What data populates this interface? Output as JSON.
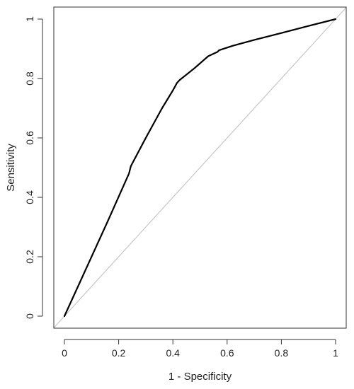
{
  "chart_data": {
    "type": "line",
    "title": "",
    "xlabel": "1 - Specificity",
    "ylabel": "Sensitivity",
    "xlim": [
      0,
      1
    ],
    "ylim": [
      0,
      1
    ],
    "x_ticks": [
      "0",
      "0.2",
      "0.4",
      "0.6",
      "0.8",
      "1"
    ],
    "y_ticks": [
      "0",
      "0.2",
      "0.4",
      "0.6",
      "0.8",
      "1"
    ],
    "x_tick_values": [
      0,
      0.2,
      0.4,
      0.6,
      0.8,
      1
    ],
    "y_tick_values": [
      0,
      0.2,
      0.4,
      0.6,
      0.8,
      1
    ],
    "grid": false,
    "series": [
      {
        "role": "roc-curve",
        "color": "#000000",
        "x": [
          0,
          0.08,
          0.16,
          0.238,
          0.245,
          0.3,
          0.36,
          0.4,
          0.415,
          0.425,
          0.48,
          0.53,
          0.565,
          0.57,
          0.62,
          0.7,
          0.8,
          0.9,
          1.0
        ],
        "y": [
          0,
          0.16,
          0.32,
          0.48,
          0.505,
          0.6,
          0.7,
          0.76,
          0.785,
          0.795,
          0.835,
          0.875,
          0.89,
          0.895,
          0.91,
          0.93,
          0.953,
          0.977,
          1.0
        ]
      },
      {
        "role": "reference-diagonal",
        "color": "#bdbdbd",
        "x": [
          -0.04,
          1.04
        ],
        "y": [
          -0.04,
          1.04
        ]
      }
    ]
  }
}
